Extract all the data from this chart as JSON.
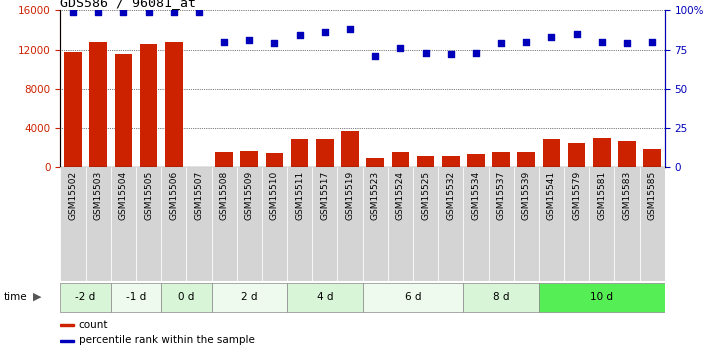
{
  "title": "GDS586 / 96081_at",
  "samples": [
    "GSM15502",
    "GSM15503",
    "GSM15504",
    "GSM15505",
    "GSM15506",
    "GSM15507",
    "GSM15508",
    "GSM15509",
    "GSM15510",
    "GSM15511",
    "GSM15517",
    "GSM15519",
    "GSM15523",
    "GSM15524",
    "GSM15525",
    "GSM15532",
    "GSM15534",
    "GSM15537",
    "GSM15539",
    "GSM15541",
    "GSM15579",
    "GSM15581",
    "GSM15583",
    "GSM15585"
  ],
  "counts": [
    11800,
    12800,
    11600,
    12600,
    12800,
    0,
    1600,
    1700,
    1500,
    2900,
    2900,
    3700,
    900,
    1600,
    1200,
    1200,
    1400,
    1600,
    1600,
    2900,
    2500,
    3000,
    2700,
    1900
  ],
  "percentiles": [
    99,
    99,
    99,
    99,
    99,
    99,
    80,
    81,
    79,
    84,
    86,
    88,
    71,
    76,
    73,
    72,
    73,
    79,
    80,
    83,
    85,
    80,
    79,
    80
  ],
  "groups": [
    {
      "label": "-2 d",
      "start": 0,
      "end": 2,
      "color": "#d8f5d8"
    },
    {
      "label": "-1 d",
      "start": 2,
      "end": 4,
      "color": "#edfaed"
    },
    {
      "label": "0 d",
      "start": 4,
      "end": 6,
      "color": "#d8f5d8"
    },
    {
      "label": "2 d",
      "start": 6,
      "end": 9,
      "color": "#edfaed"
    },
    {
      "label": "4 d",
      "start": 9,
      "end": 12,
      "color": "#d8f5d8"
    },
    {
      "label": "6 d",
      "start": 12,
      "end": 16,
      "color": "#edfaed"
    },
    {
      "label": "8 d",
      "start": 16,
      "end": 19,
      "color": "#d8f5d8"
    },
    {
      "label": "10 d",
      "start": 19,
      "end": 24,
      "color": "#55ee55"
    }
  ],
  "bar_color": "#cc2200",
  "dot_color": "#0000bb",
  "left_tick_color": "#cc2200",
  "ylim_left": [
    0,
    16000
  ],
  "ylim_right": [
    0,
    100
  ],
  "yticks_left": [
    0,
    4000,
    8000,
    12000,
    16000
  ],
  "yticks_right": [
    0,
    25,
    50,
    75,
    100
  ],
  "yticklabels_right": [
    "0",
    "25",
    "50",
    "75",
    "100%"
  ],
  "background_color": "#ffffff",
  "tick_label_bg": "#d4d4d4"
}
